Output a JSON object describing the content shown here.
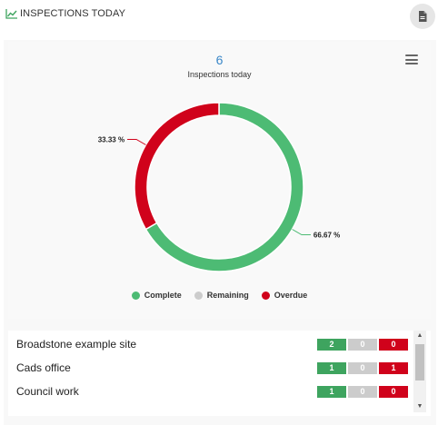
{
  "header": {
    "title": "INSPECTIONS TODAY",
    "chart_icon": "line-chart-icon",
    "doc_icon": "document-icon"
  },
  "summary": {
    "count": "6",
    "subtitle": "Inspections today"
  },
  "chart_data": {
    "type": "pie",
    "labels": [
      "Complete",
      "Remaining",
      "Overdue"
    ],
    "values": [
      4,
      0,
      2
    ],
    "percent_labels": [
      "66.67 %",
      "",
      "33.33 %"
    ],
    "colors": [
      "#4dbb74",
      "#cccccc",
      "#d0021b"
    ],
    "legend_position": "bottom"
  },
  "legend": [
    {
      "label": "Complete",
      "color": "#4dbb74"
    },
    {
      "label": "Remaining",
      "color": "#cccccc"
    },
    {
      "label": "Overdue",
      "color": "#d0021b"
    }
  ],
  "sites": [
    {
      "name": "Broadstone example site",
      "complete": "2",
      "remaining": "0",
      "overdue": "0"
    },
    {
      "name": "Cads office",
      "complete": "1",
      "remaining": "0",
      "overdue": "1"
    },
    {
      "name": "Council work",
      "complete": "1",
      "remaining": "0",
      "overdue": "0"
    }
  ],
  "scrollbar": {
    "up_glyph": "▲",
    "down_glyph": "▼"
  }
}
